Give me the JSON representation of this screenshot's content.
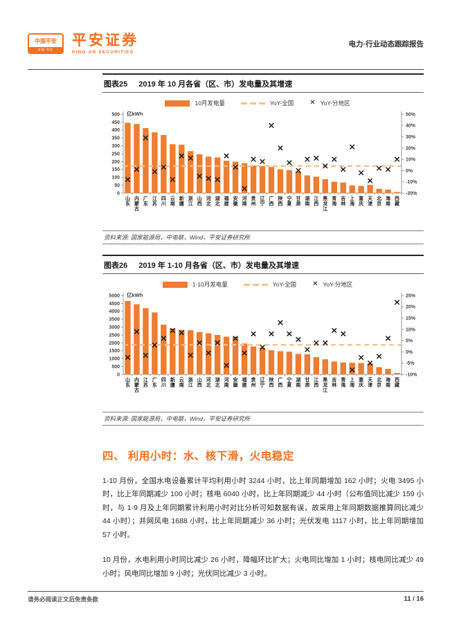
{
  "colors": {
    "accent": "#F36F21",
    "bar": "#ED7D31",
    "dashed_line": "#F7C08A",
    "marker": "#1a1a1a"
  },
  "header": {
    "logo_box_text": "中国平安",
    "logo_strip_text": "金融·科技",
    "brand": "平安证券",
    "brand_sub": "PING AN SECURITIES",
    "report_type": "电力·行业动态跟踪报告"
  },
  "figures": [
    {
      "tag": "图表25",
      "title": "2019 年 10 月各省（区、市）发电量及其增速",
      "legend": [
        "10月发电量",
        "YoY-全国",
        "YoY-分地区"
      ],
      "source": "资料来源: 国家能源局，中电联，Wind，平安证券研究所"
    },
    {
      "tag": "图表26",
      "title": "2019 年 1-10 月各省（区、市）发电量及其增速",
      "legend": [
        "1-10月发电量",
        "YoY-全国",
        "YoY-分地区"
      ],
      "source": "资料来源: 国家能源局，中电联，Wind，平安证券研究所"
    }
  ],
  "section": {
    "title": "四、  利用小时：水、核下滑，火电稳定",
    "paragraphs": [
      "1-10 月份，全国水电设备累计平均利用小时 3244 小时，比上年同期增加 162 小时；火电 3495 小时，比上年同期减少 100 小时；核电 6040 小时，比上年同期减少 44 小时（公布值同比减少 159 小时，与 1-9 月及上年同期累计利用小时对比分析可知数据有误，故采用上年同期数据推算同比减少 44 小时）；并网风电 1688 小时，比上年同期减少 36 小时；光伏发电 1117 小时，比上年同期增加 57 小时。",
      "10 月份，水电利用小时同比减少 26 小时，降幅环比扩大；火电同比增加 1 小时；核电同比减少 49 小时；风电同比增加 9 小时；光伏同比减少 3 小时。"
    ]
  },
  "footer": {
    "disclaimer": "请务必阅读正文后免责条款",
    "page": "11 / 16"
  },
  "chart_data": [
    {
      "type": "bar",
      "title": "2019 年 10 月各省（区、市）发电量及其增速",
      "unit": "亿kWh",
      "categories": [
        "山东",
        "内蒙古",
        "广东",
        "江苏",
        "四川",
        "云南",
        "新疆",
        "浙江",
        "山西",
        "河北",
        "湖北",
        "福建",
        "安徽",
        "河南",
        "贵州",
        "辽宁",
        "广西",
        "陕西",
        "宁夏",
        "甘肃",
        "湖南",
        "江西",
        "黑龙江",
        "青海",
        "吉林",
        "上海",
        "重庆",
        "天津",
        "北京",
        "海南",
        "西藏"
      ],
      "series": [
        {
          "name": "10月发电量",
          "type": "bar",
          "axis": "left",
          "values": [
            445,
            438,
            412,
            385,
            368,
            310,
            307,
            266,
            246,
            231,
            226,
            205,
            199,
            189,
            174,
            171,
            166,
            151,
            146,
            137,
            112,
            104,
            88,
            72,
            67,
            48,
            45,
            52,
            27,
            22,
            7
          ]
        },
        {
          "name": "YoY-全国",
          "type": "dashed-line",
          "axis": "right",
          "value": 4.0
        },
        {
          "name": "YoY-分地区",
          "type": "scatter",
          "axis": "right",
          "values": [
            -8,
            1,
            29,
            -1,
            3,
            -8,
            13,
            11,
            -5,
            -7,
            -8,
            13,
            3,
            -16,
            10,
            8,
            40,
            20,
            7,
            0,
            10,
            11,
            4,
            10,
            1,
            21,
            -2,
            -9,
            2,
            1,
            10
          ]
        }
      ],
      "left_axis": {
        "min": 0,
        "max": 500,
        "step": 50,
        "label": "亿kWh"
      },
      "right_axis": {
        "min": -20,
        "max": 50,
        "step": 10,
        "format": "%"
      },
      "legend_position": "top",
      "grid": false
    },
    {
      "type": "bar",
      "title": "2019 年 1-10 月各省（区、市）发电量及其增速",
      "unit": "亿kWh",
      "categories": [
        "山东",
        "内蒙古",
        "江苏",
        "广东",
        "四川",
        "新疆",
        "云南",
        "浙江",
        "山西",
        "河北",
        "湖北",
        "河南",
        "安徽",
        "福建",
        "贵州",
        "辽宁",
        "陕西",
        "广西",
        "宁夏",
        "湖南",
        "甘肃",
        "江西",
        "黑龙江",
        "吉林",
        "青海",
        "上海",
        "重庆",
        "天津",
        "北京",
        "海南",
        "西藏"
      ],
      "series": [
        {
          "name": "1-10月发电量",
          "type": "bar",
          "axis": "left",
          "values": [
            4650,
            4450,
            4200,
            3930,
            3150,
            2900,
            2820,
            2800,
            2690,
            2600,
            2500,
            2390,
            2380,
            1960,
            1770,
            1700,
            1530,
            1470,
            1440,
            1300,
            1280,
            1100,
            960,
            820,
            760,
            740,
            720,
            700,
            460,
            350,
            90
          ]
        },
        {
          "name": "YoY-全国",
          "type": "dashed-line",
          "axis": "right",
          "value": 3.1
        },
        {
          "name": "YoY-分地区",
          "type": "scatter",
          "axis": "right",
          "values": [
            -2.5,
            9,
            -1.5,
            3,
            6,
            9.5,
            8.5,
            -1.5,
            4,
            -0.5,
            4,
            -6,
            6,
            -0.5,
            8,
            2,
            8,
            13,
            8,
            5.5,
            1,
            4,
            4,
            9.5,
            8,
            -8,
            -2.5,
            -5,
            -2,
            6,
            22
          ]
        }
      ],
      "left_axis": {
        "min": 0,
        "max": 5000,
        "step": 500,
        "label": "亿kWh"
      },
      "right_axis": {
        "min": -10,
        "max": 25,
        "step": 5,
        "format": "%"
      },
      "legend_position": "top",
      "grid": false
    }
  ]
}
